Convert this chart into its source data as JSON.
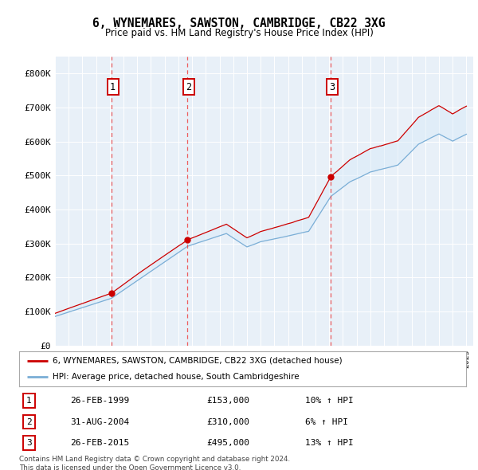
{
  "title": "6, WYNEMARES, SAWSTON, CAMBRIDGE, CB22 3XG",
  "subtitle": "Price paid vs. HM Land Registry's House Price Index (HPI)",
  "ylim": [
    0,
    850000
  ],
  "yticks": [
    0,
    100000,
    200000,
    300000,
    400000,
    500000,
    600000,
    700000,
    800000
  ],
  "ytick_labels": [
    "£0",
    "£100K",
    "£200K",
    "£300K",
    "£400K",
    "£500K",
    "£600K",
    "£700K",
    "£800K"
  ],
  "sale_dates": [
    1999.12,
    2004.66,
    2015.12
  ],
  "sale_prices": [
    153000,
    310000,
    495000
  ],
  "sale_labels": [
    "1",
    "2",
    "3"
  ],
  "sale_date_labels": [
    "26-FEB-1999",
    "31-AUG-2004",
    "26-FEB-2015"
  ],
  "sale_price_labels": [
    "£153,000",
    "£310,000",
    "£495,000"
  ],
  "sale_hpi_labels": [
    "10% ↑ HPI",
    "6% ↑ HPI",
    "13% ↑ HPI"
  ],
  "property_line_color": "#cc0000",
  "hpi_line_color": "#7aaed6",
  "hpi_fill_color": "#d8eaf8",
  "vline_color": "#ee4444",
  "dot_color": "#cc0000",
  "legend_label_property": "6, WYNEMARES, SAWSTON, CAMBRIDGE, CB22 3XG (detached house)",
  "legend_label_hpi": "HPI: Average price, detached house, South Cambridgeshire",
  "footnote": "Contains HM Land Registry data © Crown copyright and database right 2024.\nThis data is licensed under the Open Government Licence v3.0.",
  "background_color": "#ffffff",
  "plot_bg_color": "#e8f0f8"
}
